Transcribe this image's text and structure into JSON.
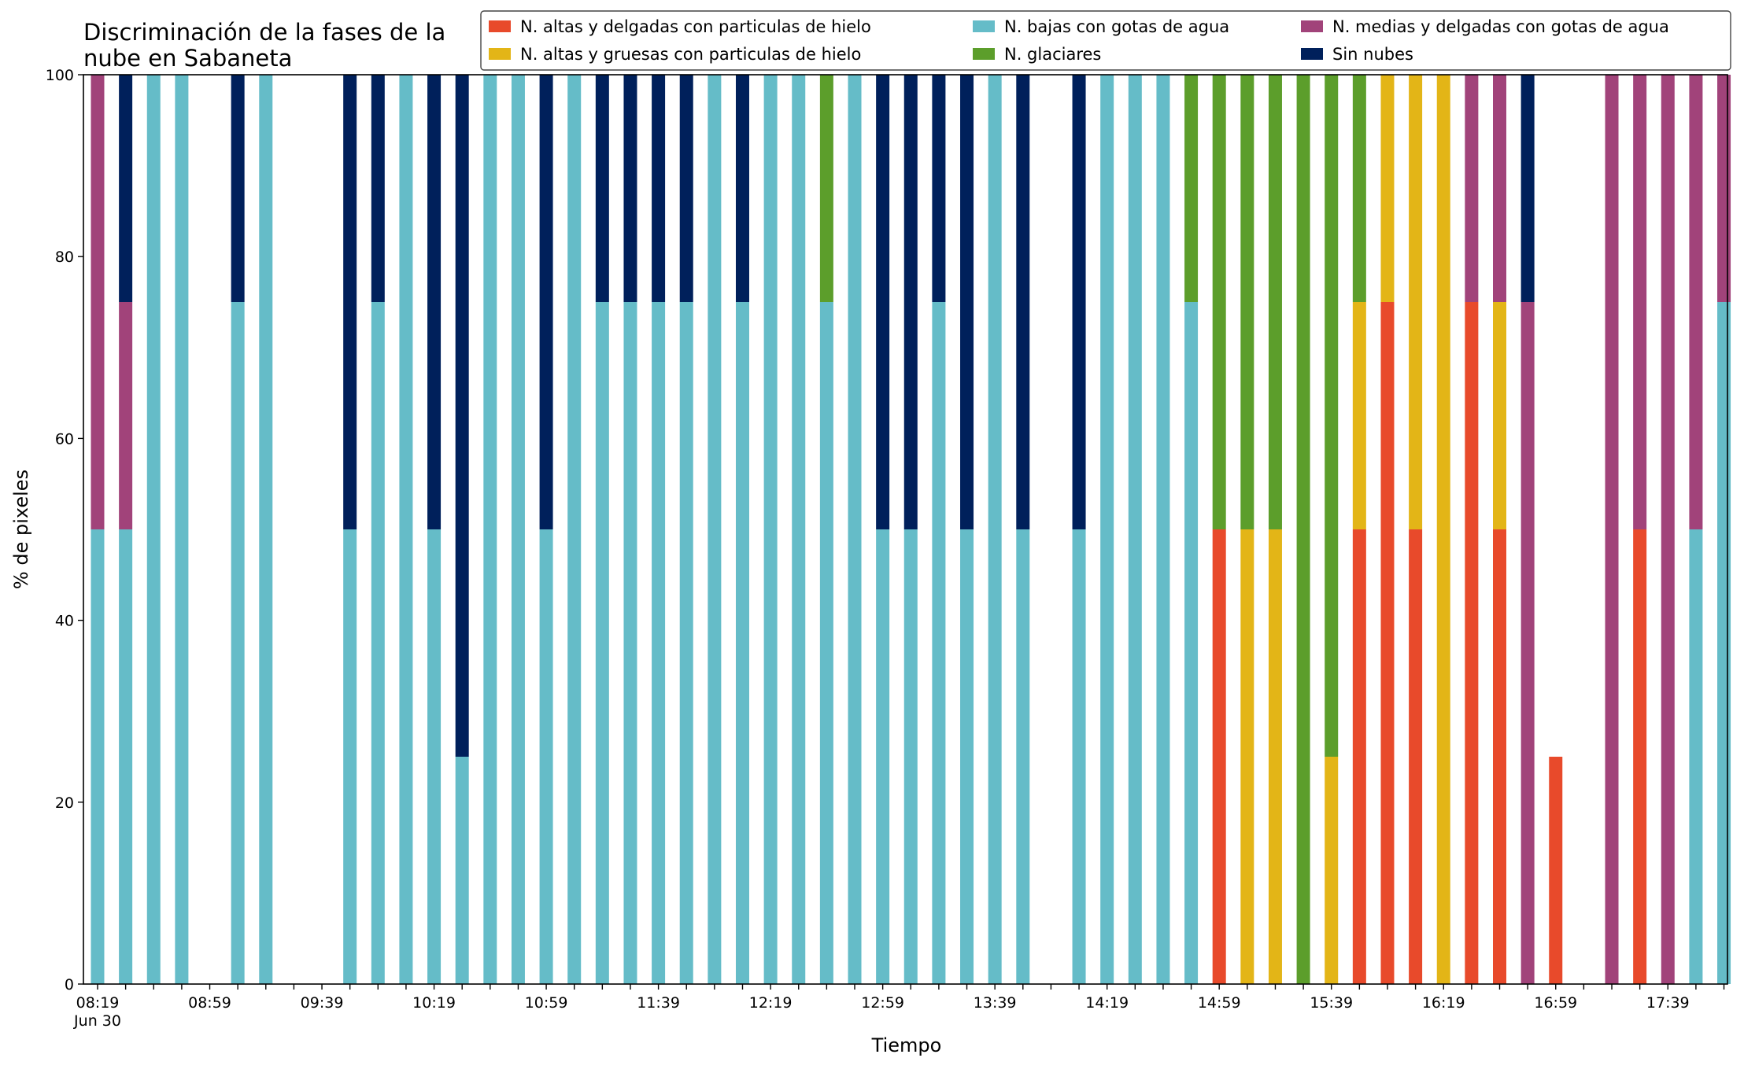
{
  "chart_data": {
    "type": "bar",
    "stacked": true,
    "title_lines": [
      "Discriminación de la fases de la",
      "nube en Sabaneta"
    ],
    "xlabel": "Tiempo",
    "ylabel": "% de pixeles",
    "ylim": [
      0,
      100
    ],
    "yticks": [
      0,
      20,
      40,
      60,
      80,
      100
    ],
    "grid": false,
    "legend_position": "top-right",
    "x_tick_labels": [
      {
        "slot": 0,
        "label": "08:19",
        "sublabel": "Jun 30"
      },
      {
        "slot": 4,
        "label": "08:59"
      },
      {
        "slot": 8,
        "label": "09:39"
      },
      {
        "slot": 12,
        "label": "10:19"
      },
      {
        "slot": 16,
        "label": "10:59"
      },
      {
        "slot": 20,
        "label": "11:39"
      },
      {
        "slot": 24,
        "label": "12:19"
      },
      {
        "slot": 28,
        "label": "12:59"
      },
      {
        "slot": 32,
        "label": "13:39"
      },
      {
        "slot": 36,
        "label": "14:19"
      },
      {
        "slot": 40,
        "label": "14:59"
      },
      {
        "slot": 44,
        "label": "15:39"
      },
      {
        "slot": 48,
        "label": "16:19"
      },
      {
        "slot": 52,
        "label": "16:59"
      },
      {
        "slot": 56,
        "label": "17:39"
      }
    ],
    "series": [
      {
        "name": "N. altas y delgadas con particulas de hielo",
        "color": "#e84a2b",
        "values": [
          0,
          0,
          0,
          0,
          0,
          0,
          0,
          0,
          0,
          0,
          0,
          0,
          0,
          0,
          0,
          0,
          0,
          0,
          0,
          0,
          0,
          0,
          0,
          0,
          0,
          0,
          0,
          0,
          0,
          0,
          0,
          0,
          0,
          0,
          0,
          0,
          0,
          0,
          0,
          0,
          50,
          0,
          0,
          0,
          0,
          50,
          75,
          50,
          0,
          75,
          50,
          0,
          25,
          0,
          0,
          50,
          0,
          0,
          0
        ]
      },
      {
        "name": "N. altas y gruesas con particulas de hielo",
        "color": "#e3b517",
        "values": [
          0,
          0,
          0,
          0,
          0,
          0,
          0,
          0,
          0,
          0,
          0,
          0,
          0,
          0,
          0,
          0,
          0,
          0,
          0,
          0,
          0,
          0,
          0,
          0,
          0,
          0,
          0,
          0,
          0,
          0,
          0,
          0,
          0,
          0,
          0,
          0,
          0,
          0,
          0,
          0,
          0,
          50,
          50,
          0,
          25,
          25,
          25,
          50,
          100,
          0,
          25,
          0,
          0,
          0,
          0,
          0,
          0,
          0,
          0
        ]
      },
      {
        "name": "N. bajas con gotas de agua",
        "color": "#65bcc8",
        "values": [
          50,
          50,
          100,
          100,
          0,
          75,
          100,
          0,
          0,
          50,
          75,
          100,
          50,
          25,
          100,
          100,
          50,
          100,
          75,
          75,
          75,
          75,
          100,
          75,
          100,
          100,
          75,
          100,
          50,
          50,
          75,
          50,
          100,
          50,
          0,
          50,
          100,
          100,
          100,
          75,
          0,
          0,
          0,
          0,
          0,
          0,
          0,
          0,
          0,
          0,
          0,
          0,
          0,
          0,
          0,
          0,
          0,
          50,
          75
        ]
      },
      {
        "name": "N. glaciares",
        "color": "#5c9e2b",
        "values": [
          0,
          0,
          0,
          0,
          0,
          0,
          0,
          0,
          0,
          0,
          0,
          0,
          0,
          0,
          0,
          0,
          0,
          0,
          0,
          0,
          0,
          0,
          0,
          0,
          0,
          0,
          25,
          0,
          0,
          0,
          0,
          0,
          0,
          0,
          0,
          0,
          0,
          0,
          0,
          25,
          50,
          50,
          50,
          100,
          75,
          25,
          0,
          0,
          0,
          0,
          0,
          0,
          0,
          0,
          0,
          0,
          0,
          0,
          0
        ]
      },
      {
        "name": "N. medias y delgadas con gotas de agua",
        "color": "#a1437a",
        "values": [
          50,
          25,
          0,
          0,
          0,
          0,
          0,
          0,
          0,
          0,
          0,
          0,
          0,
          0,
          0,
          0,
          0,
          0,
          0,
          0,
          0,
          0,
          0,
          0,
          0,
          0,
          0,
          0,
          0,
          0,
          0,
          0,
          0,
          0,
          0,
          0,
          0,
          0,
          0,
          0,
          0,
          0,
          0,
          0,
          0,
          0,
          0,
          0,
          0,
          25,
          25,
          75,
          0,
          0,
          100,
          50,
          100,
          50,
          25
        ]
      },
      {
        "name": "Sin nubes",
        "color": "#00205b",
        "values": [
          0,
          25,
          0,
          0,
          0,
          25,
          0,
          0,
          0,
          50,
          25,
          0,
          50,
          75,
          0,
          0,
          50,
          0,
          25,
          25,
          25,
          25,
          0,
          25,
          0,
          0,
          0,
          0,
          50,
          50,
          25,
          50,
          0,
          50,
          0,
          50,
          0,
          0,
          0,
          0,
          0,
          0,
          0,
          0,
          0,
          0,
          0,
          0,
          0,
          0,
          0,
          25,
          0,
          0,
          0,
          0,
          0,
          0,
          0
        ]
      }
    ],
    "present": [
      1,
      1,
      1,
      1,
      0,
      1,
      1,
      0,
      0,
      1,
      1,
      1,
      1,
      1,
      1,
      1,
      1,
      1,
      1,
      1,
      1,
      1,
      1,
      1,
      1,
      1,
      1,
      1,
      1,
      1,
      1,
      1,
      1,
      1,
      0,
      1,
      1,
      1,
      1,
      1,
      1,
      1,
      1,
      1,
      1,
      1,
      1,
      1,
      1,
      1,
      1,
      1,
      1,
      0,
      1,
      1,
      1,
      1,
      1
    ]
  }
}
